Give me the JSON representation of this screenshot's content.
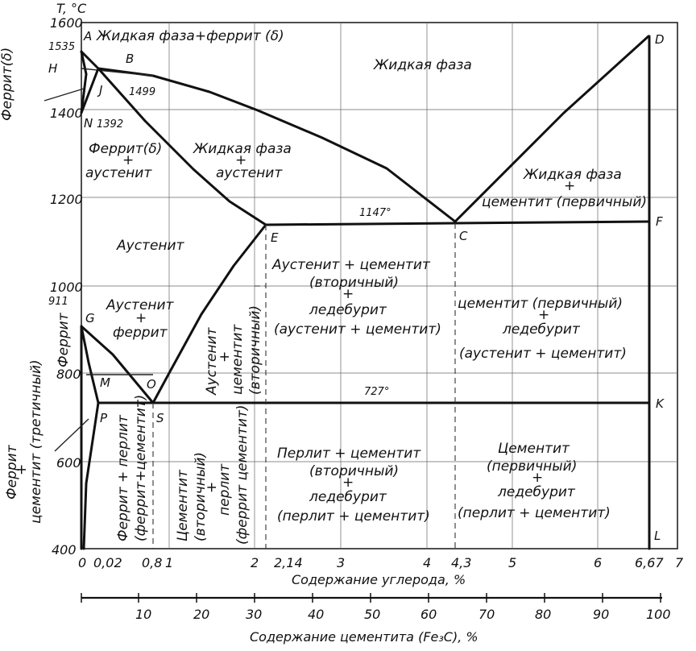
{
  "axes": {
    "y_title": "T, °C",
    "x_title": "Содержание углерода, %",
    "x2_title": "Содержание цементита (Fe₃C), %",
    "y_ticks": [
      "1600",
      "1400",
      "1200",
      "1000",
      "800",
      "600",
      "400"
    ],
    "x_ticks": [
      "0",
      "0,02",
      "0,8",
      "1",
      "2",
      "2,14",
      "3",
      "4",
      "4,3",
      "5",
      "6",
      "6,67",
      "7"
    ],
    "x2_ticks": [
      "10",
      "20",
      "30",
      "40",
      "50",
      "60",
      "70",
      "80",
      "90",
      "100"
    ]
  },
  "points": {
    "A": "A",
    "B": "B",
    "H": "H",
    "J": "J",
    "N": "N",
    "D": "D",
    "E": "E",
    "C": "C",
    "F": "F",
    "G": "G",
    "M": "M",
    "O": "O",
    "P": "P",
    "S": "S",
    "K": "K",
    "L": "L"
  },
  "temperatures": {
    "t1535": "1535",
    "t1499": "1499",
    "t1392": "1392",
    "t911": "911",
    "t1147": "1147°",
    "t727": "727°"
  },
  "regions": {
    "liquid_ferrite": "Жидкая фаза+феррит (δ)",
    "liquid": "Жидкая фаза",
    "ferrite_delta_side": "Феррит(δ)",
    "ferrite_austenite_1": "Феррит(δ)",
    "ferrite_austenite_2": "+",
    "ferrite_austenite_3": "аустенит",
    "liquid_austenite_1": "Жидкая фаза",
    "liquid_austenite_2": "+",
    "liquid_austenite_3": "аустенит",
    "liquid_cementite_1": "Жидкая фаза",
    "liquid_cementite_2": "+",
    "liquid_cementite_3": "цементит (первичный)",
    "austenite": "Аустенит",
    "aust_cem_led_1": "Аустенит + цементит",
    "aust_cem_led_2": "(вторичный)",
    "aust_cem_led_3": "+",
    "aust_cem_led_4": "ледебурит",
    "aust_cem_led_5": "(аустенит + цементит)",
    "cem_led_upper_1": "цементит (первичный)",
    "cem_led_upper_2": "+",
    "cem_led_upper_3": "ледебурит",
    "cem_led_upper_4": "(аустенит + цементит)",
    "austenite_ferrite_1": "Аустенит",
    "austenite_ferrite_2": "+",
    "austenite_ferrite_3": "феррит",
    "ferrite_side": "Феррит",
    "aust_cem_vert_1": "Аустенит",
    "aust_cem_vert_2": "+",
    "aust_cem_vert_3": "цементит",
    "aust_cem_vert_4": "(вторичный)",
    "ferrite_cementite_side_1": "Феррит",
    "ferrite_cementite_side_2": "+",
    "ferrite_cementite_side_3": "цементит (третичный)",
    "ferrite_pearlite_1": "Феррит + перлит",
    "ferrite_pearlite_2": "(феррит+цементит)",
    "cem_pearlite_1": "Цементит",
    "cem_pearlite_2": "(вторичный)",
    "cem_pearlite_3": "+",
    "cem_pearlite_4": "перлит",
    "cem_pearlite_5": "(феррит цементит)",
    "pearl_cem_led_1": "Перлит + цементит",
    "pearl_cem_led_2": "(вторичный)",
    "pearl_cem_led_3": "+",
    "pearl_cem_led_4": "ледебурит",
    "pearl_cem_led_5": "(перлит + цементит)",
    "cem_led_lower_1": "Цементит",
    "cem_led_lower_2": "(первичный)",
    "cem_led_lower_3": "+",
    "cem_led_lower_4": "ледебурит",
    "cem_led_lower_5": "(перлит + цементит)"
  }
}
